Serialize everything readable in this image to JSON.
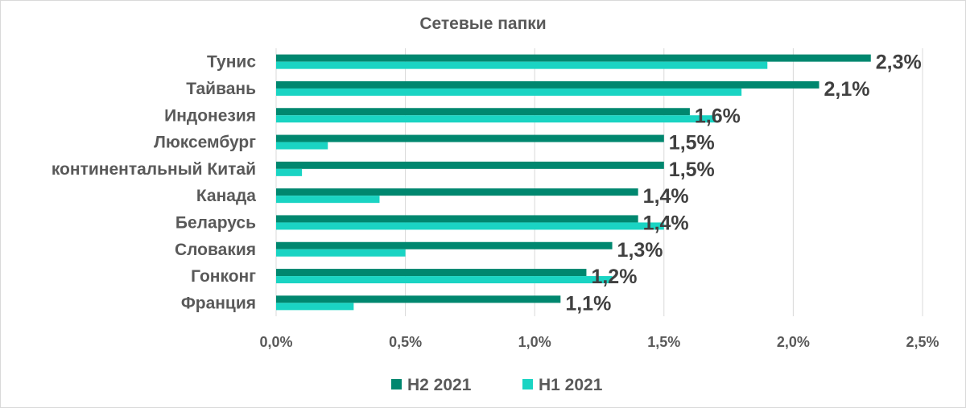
{
  "chart_data": {
    "type": "bar",
    "orientation": "horizontal",
    "title": "Сетевые папки",
    "xlabel": "",
    "ylabel": "",
    "categories": [
      "Тунис",
      "Тайвань",
      "Индонезия",
      "Люксембург",
      "континентальный Китай",
      "Канада",
      "Беларусь",
      "Словакия",
      "Гонконг",
      "Франция"
    ],
    "series": [
      {
        "name": "H2 2021",
        "color": "#00876f",
        "values": [
          2.3,
          2.1,
          1.6,
          1.5,
          1.5,
          1.4,
          1.4,
          1.3,
          1.2,
          1.1
        ]
      },
      {
        "name": "H1 2021",
        "color": "#1ad4c3",
        "values": [
          1.9,
          1.8,
          1.7,
          0.2,
          0.1,
          0.4,
          1.5,
          0.5,
          1.3,
          0.3
        ]
      }
    ],
    "data_labels": [
      "2,3%",
      "2,1%",
      "1,6%",
      "1,5%",
      "1,5%",
      "1,4%",
      "1,4%",
      "1,3%",
      "1,2%",
      "1,1%"
    ],
    "xlim": [
      0,
      2.5
    ],
    "xticks": [
      0,
      0.5,
      1.0,
      1.5,
      2.0,
      2.5
    ],
    "xtick_labels": [
      "0,0%",
      "0,5%",
      "1,0%",
      "1,5%",
      "2,0%",
      "2,5%"
    ],
    "grid": true,
    "legend_position": "bottom"
  }
}
